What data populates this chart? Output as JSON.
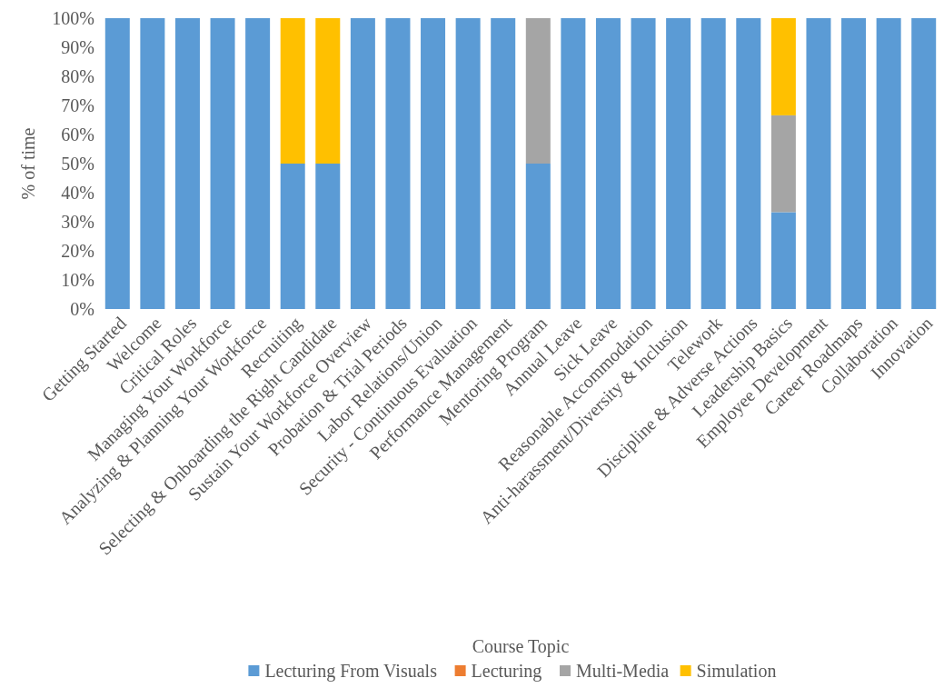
{
  "chart_data": {
    "type": "bar",
    "stacked": true,
    "xlabel": "Course Topic",
    "ylabel": "% of time",
    "legend": "bottom",
    "grid": false,
    "categories": [
      "Getting Started",
      "Welcome",
      "Critical Roles",
      "Managing Your Workforce",
      "Analyzing & Planning Your Workforce",
      "Recruiting",
      "Selecting & Onboarding the Right Candidate",
      "Sustain Your Workforce Overview",
      "Probation & Trial Periods",
      "Labor Relations/Union",
      "Security - Continuous Evaluation",
      "Performance Management",
      "Mentoring Program",
      "Annual Leave",
      "Sick Leave",
      "Reasonable Accommodation",
      "Anti-harassment/Diversity & Inclusion",
      "Telework",
      "Discipline & Adverse Actions",
      "Leadership Basics",
      "Employee Development",
      "Career Roadmaps",
      "Collaboration",
      "Innovation"
    ],
    "series": [
      {
        "name": "Lecturing From Visuals",
        "color": "#5b9bd5",
        "values": [
          100,
          100,
          100,
          100,
          100,
          50,
          50,
          100,
          100,
          100,
          100,
          100,
          50,
          100,
          100,
          100,
          100,
          100,
          100,
          33.3,
          100,
          100,
          100,
          100
        ]
      },
      {
        "name": "Lecturing",
        "color": "#ed7d31",
        "values": [
          0,
          0,
          0,
          0,
          0,
          0,
          0,
          0,
          0,
          0,
          0,
          0,
          0,
          0,
          0,
          0,
          0,
          0,
          0,
          0,
          0,
          0,
          0,
          0
        ]
      },
      {
        "name": "Multi-Media",
        "color": "#a5a5a5",
        "values": [
          0,
          0,
          0,
          0,
          0,
          0,
          0,
          0,
          0,
          0,
          0,
          0,
          50,
          0,
          0,
          0,
          0,
          0,
          0,
          33.3,
          0,
          0,
          0,
          0
        ]
      },
      {
        "name": "Simulation",
        "color": "#ffc000",
        "values": [
          0,
          0,
          0,
          0,
          0,
          50,
          50,
          0,
          0,
          0,
          0,
          0,
          0,
          0,
          0,
          0,
          0,
          0,
          0,
          33.4,
          0,
          0,
          0,
          0
        ]
      }
    ],
    "ylim": [
      0,
      100
    ],
    "yticks": [
      {
        "value": 0,
        "label": "0%"
      },
      {
        "value": 10,
        "label": "10%"
      },
      {
        "value": 20,
        "label": "20%"
      },
      {
        "value": 30,
        "label": "30%"
      },
      {
        "value": 40,
        "label": "40%"
      },
      {
        "value": 50,
        "label": "50%"
      },
      {
        "value": 60,
        "label": "60%"
      },
      {
        "value": 70,
        "label": "70%"
      },
      {
        "value": 80,
        "label": "80%"
      },
      {
        "value": 90,
        "label": "90%"
      },
      {
        "value": 100,
        "label": "100%"
      }
    ]
  }
}
